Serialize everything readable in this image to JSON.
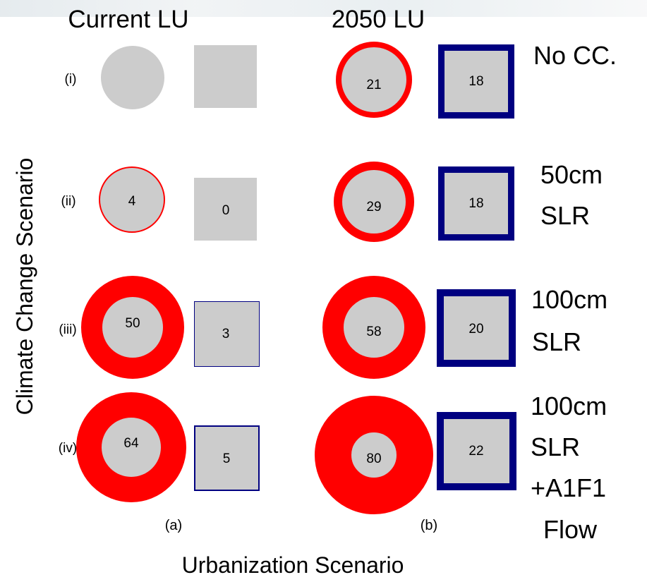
{
  "columns": [
    {
      "title": "Current LU",
      "sub_label": "(a)"
    },
    {
      "title": "2050 LU",
      "sub_label": "(b)"
    }
  ],
  "y_axis_label": "Climate Change Scenario",
  "x_axis_label": "Urbanization Scenario",
  "rows": [
    {
      "label": "(i)",
      "scenario_lines": [
        "No CC."
      ],
      "current": {
        "circle_value": "",
        "square_value": ""
      },
      "future": {
        "circle_value": "21",
        "square_value": "18"
      }
    },
    {
      "label": "(ii)",
      "scenario_lines": [
        "50cm",
        "SLR"
      ],
      "current": {
        "circle_value": "4",
        "square_value": "0"
      },
      "future": {
        "circle_value": "29",
        "square_value": "18"
      }
    },
    {
      "label": "(iii)",
      "scenario_lines": [
        "100cm",
        "SLR"
      ],
      "current": {
        "circle_value": "50",
        "square_value": "3"
      },
      "future": {
        "circle_value": "58",
        "square_value": "20"
      }
    },
    {
      "label": "(iv)",
      "scenario_lines": [
        "100cm",
        "SLR",
        "+A1F1",
        "Flow"
      ],
      "current": {
        "circle_value": "64",
        "square_value": "5"
      },
      "future": {
        "circle_value": "80",
        "square_value": "22"
      }
    }
  ],
  "colors": {
    "circle_ring": "#ff0000",
    "square_border": "#000080",
    "fill": "#cccccc"
  }
}
